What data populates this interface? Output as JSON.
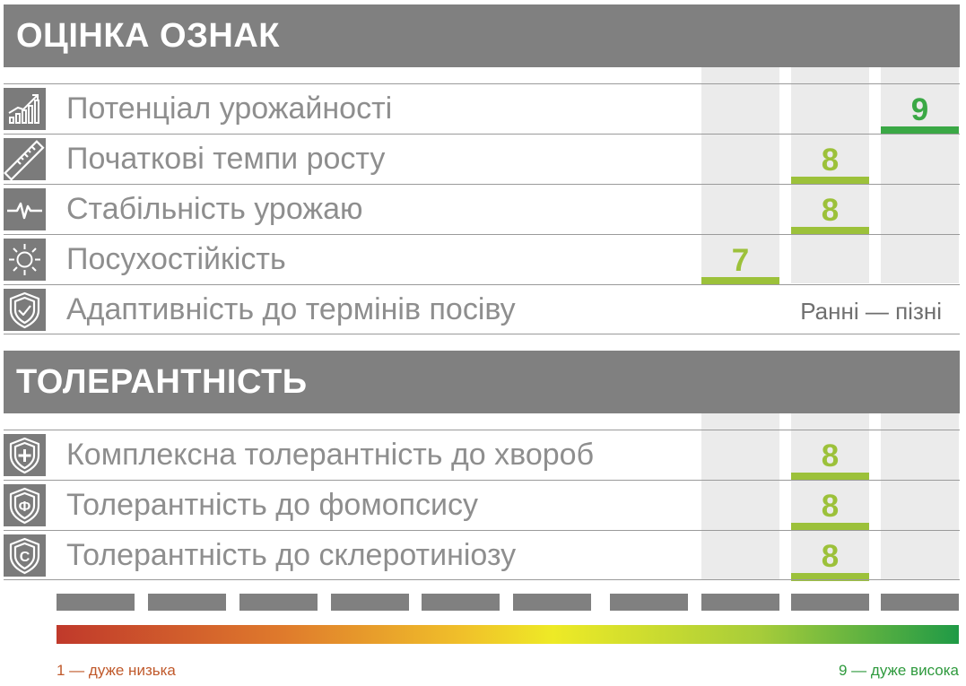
{
  "colors": {
    "header_bg": "#808080",
    "label": "#8e8e8e",
    "score_green_light": "#9cc13a",
    "score_green_dark": "#3aa845",
    "legend_low": "#c0592b",
    "legend_high": "#2f9a3e"
  },
  "section1": {
    "title": "ОЦІНКА ОЗНАК",
    "rows": [
      {
        "icon": "chart-growth-icon",
        "label": "Потенціал урожайності",
        "score": 9,
        "level": 4
      },
      {
        "icon": "ruler-icon",
        "label": "Початкові темпи росту",
        "score": 8,
        "level": 3
      },
      {
        "icon": "pulse-icon",
        "label": "Стабільність урожаю",
        "score": 8,
        "level": 3
      },
      {
        "icon": "sun-icon",
        "label": "Посухостійкість",
        "score": 7,
        "level": 2
      },
      {
        "icon": "shield-check-icon",
        "label": "Адаптивність до термінів посіву",
        "note": "Ранні — пізні"
      }
    ]
  },
  "section2": {
    "title": "ТОЛЕРАНТНІСТЬ",
    "rows": [
      {
        "icon": "shield-plus-icon",
        "label": "Комплексна толерантність до хвороб",
        "score": 8,
        "level": 3
      },
      {
        "icon": "shield-phi-icon",
        "label": "Толерантність до фомопсису",
        "score": 8,
        "level": 3,
        "icon_letter": "Ф"
      },
      {
        "icon": "shield-c-icon",
        "label": "Толерантність до склеротиніозу",
        "score": 8,
        "level": 3,
        "icon_letter": "С"
      }
    ]
  },
  "legend": {
    "low": "1 — дуже низька",
    "high": "9 — дуже висока"
  }
}
